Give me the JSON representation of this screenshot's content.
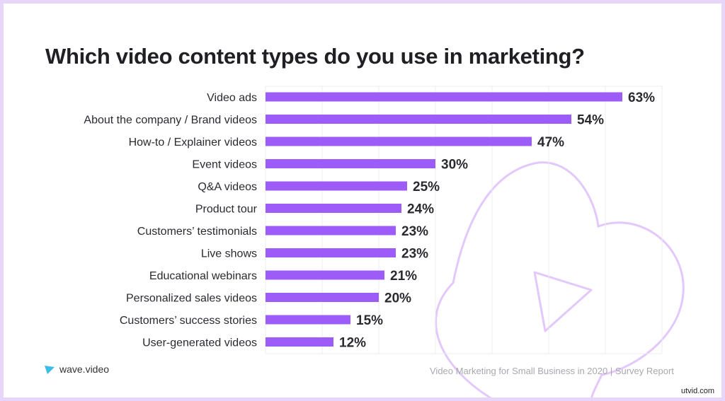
{
  "chart_data": {
    "type": "bar",
    "orientation": "horizontal",
    "title": "Which video content types do you use in marketing?",
    "categories": [
      "Video ads",
      "About the company / Brand videos",
      "How-to / Explainer videos",
      "Event videos",
      "Q&A videos",
      "Product tour",
      "Customers’ testimonials",
      "Live shows",
      "Educational webinars",
      "Personalized sales videos",
      "Customers’ success stories",
      "User-generated videos"
    ],
    "values": [
      63,
      54,
      47,
      30,
      25,
      24,
      23,
      23,
      21,
      20,
      15,
      12
    ],
    "value_labels": [
      "63%",
      "54%",
      "47%",
      "30%",
      "25%",
      "24%",
      "23%",
      "23%",
      "21%",
      "20%",
      "15%",
      "12%"
    ],
    "unit": "%",
    "xlim": [
      0,
      70
    ],
    "grid": true,
    "bar_color": "#9d5cf7"
  },
  "branding": {
    "logo_text": "wave.video",
    "logo_icon": "play-triangle-icon"
  },
  "footer": "Video Marketing for Small Business in 2020 | Survey Report",
  "watermark": "utvid.com",
  "colors": {
    "border": "#e8d6fa",
    "decor": "#e2c8fb"
  }
}
